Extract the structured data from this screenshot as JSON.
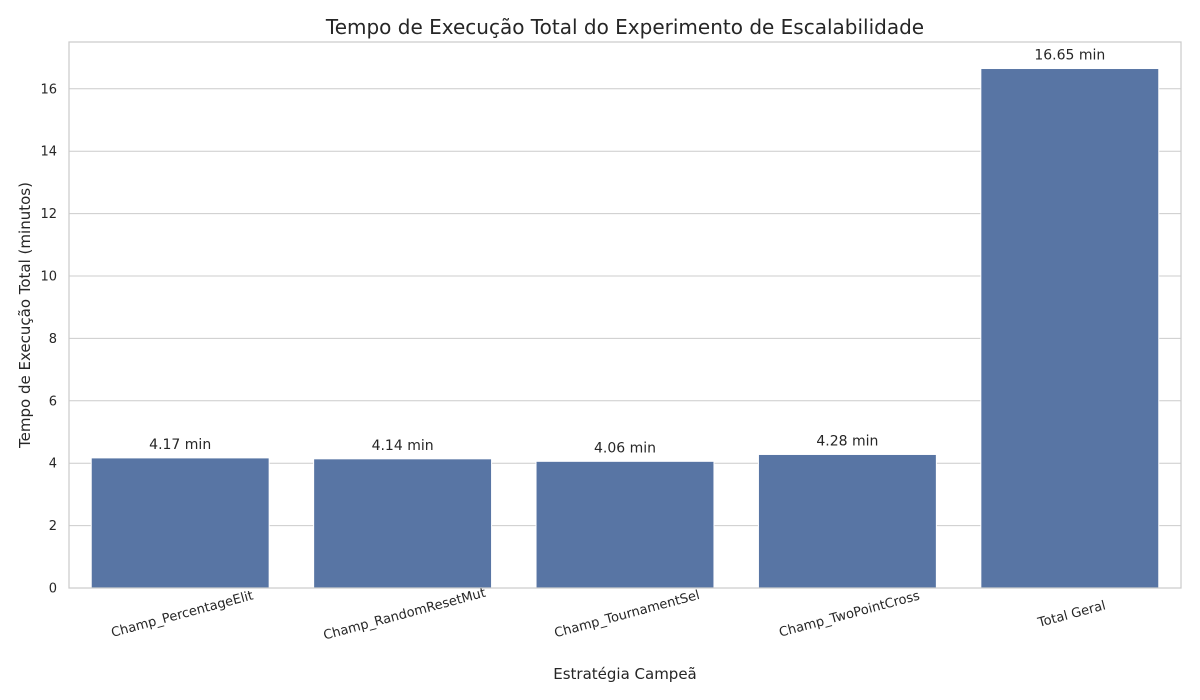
{
  "chart_data": {
    "type": "bar",
    "title": "Tempo de Execução Total do Experimento de Escalabilidade",
    "xlabel": "Estratégia Campeã",
    "ylabel": "Tempo de Execução Total (minutos)",
    "categories": [
      "Champ_PercentageElit",
      "Champ_RandomResetMut",
      "Champ_TournamentSel",
      "Champ_TwoPointCross",
      "Total Geral"
    ],
    "values": [
      4.17,
      4.14,
      4.06,
      4.28,
      16.65
    ],
    "data_labels": [
      "4.17 min",
      "4.14 min",
      "4.06 min",
      "4.28 min",
      "16.65 min"
    ],
    "ylim": [
      0,
      17.5
    ],
    "yticks": [
      0,
      2,
      4,
      6,
      8,
      10,
      12,
      14,
      16
    ],
    "grid": "horizontal",
    "xtick_rotation_deg": -15,
    "bar_color": "#5875a4",
    "grid_color": "#cccccc",
    "text_color": "#262626"
  }
}
